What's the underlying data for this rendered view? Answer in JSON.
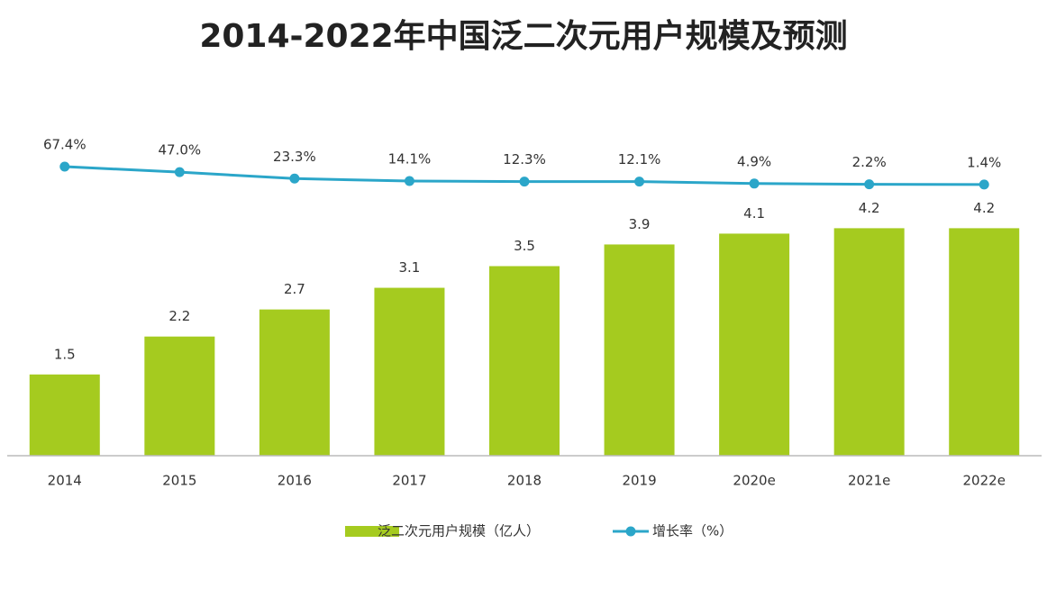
{
  "chart_data": {
    "type": "bar-line",
    "title": "2014-2022年中国泛二次元用户规模及预测",
    "categories": [
      "2014",
      "2015",
      "2016",
      "2017",
      "2018",
      "2019",
      "2020e",
      "2021e",
      "2022e"
    ],
    "series": [
      {
        "name": "泛二次元用户规模（亿人）",
        "type": "bar",
        "color": "#a5cb1f",
        "values": [
          1.5,
          2.2,
          2.7,
          3.1,
          3.5,
          3.9,
          4.1,
          4.2,
          4.2
        ]
      },
      {
        "name": "增长率（%）",
        "type": "line",
        "axis": "y2",
        "color": "#2ba6c9",
        "values": [
          67.4,
          47.0,
          23.3,
          14.1,
          12.3,
          12.1,
          4.9,
          2.2,
          1.4
        ],
        "value_labels": [
          "67.4%",
          "47.0%",
          "23.3%",
          "14.1%",
          "12.3%",
          "12.1%",
          "4.9%",
          "2.2%",
          "1.4%"
        ]
      }
    ],
    "ylim": [
      0,
      7
    ],
    "y2lim": [
      -1000,
      400
    ],
    "legend": "bottom"
  }
}
